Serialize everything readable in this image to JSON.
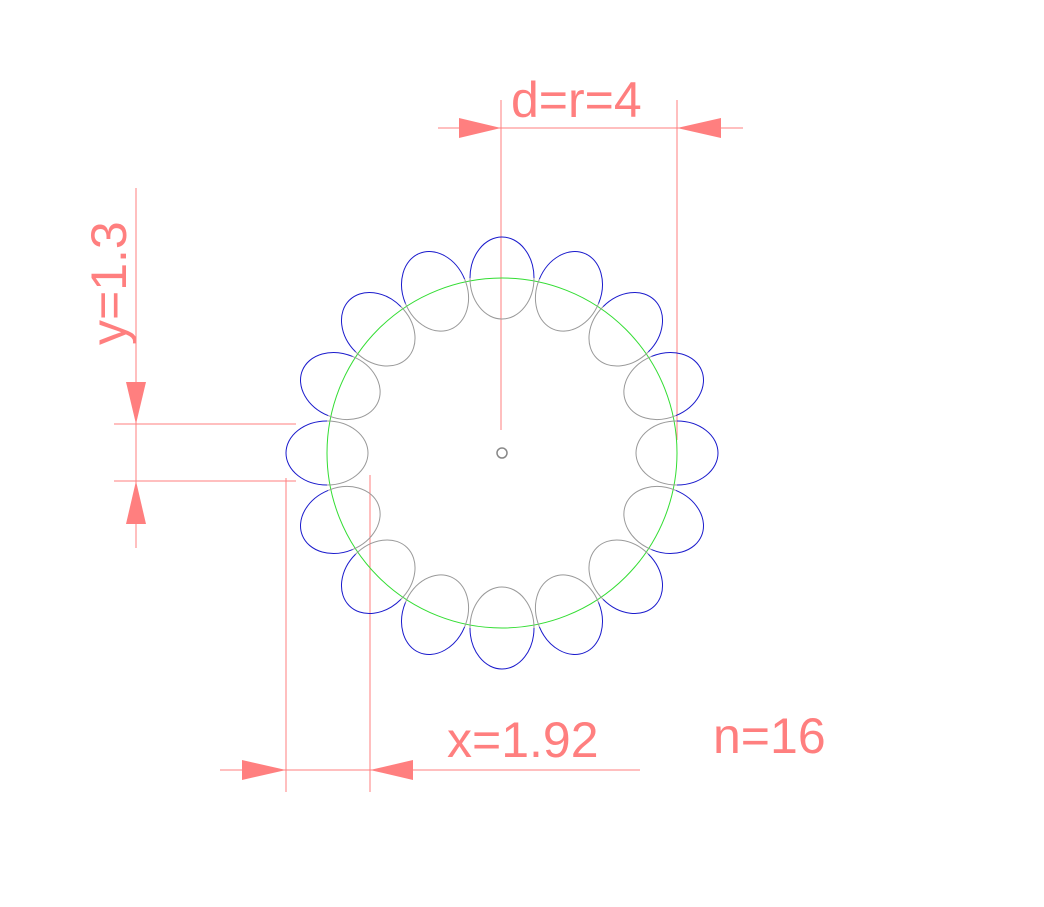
{
  "labels": {
    "diameter": "d=r=4",
    "height": "y=1.3",
    "width": "x=1.92",
    "count": "n=16"
  },
  "geometry": {
    "circle_diameter": 4,
    "ellipse_width": 1.92,
    "ellipse_height": 1.3,
    "ellipse_count": 16
  },
  "colors": {
    "dimension": "#ff7f7f",
    "circle": "#33dd33",
    "ellipse_outer": "#1a1acc",
    "ellipse_inner": "#999999",
    "center_mark": "#888888"
  }
}
